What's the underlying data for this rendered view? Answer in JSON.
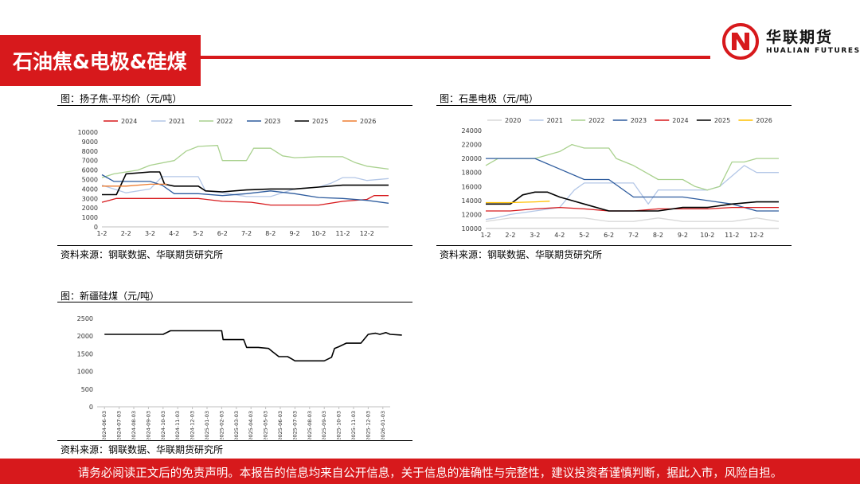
{
  "page": {
    "title": "石油焦&电极&硅煤",
    "brand_cn": "华联期货",
    "brand_en": "HUALIAN FUTURES",
    "footer": "请务必阅读正文后的免责声明。本报告的信息均来自公开信息，关于信息的准确性与完整性，建议投资者谨慎判断，据此入市，风险自担。",
    "colors": {
      "brand_red": "#d7191c"
    }
  },
  "panels": [
    {
      "title": "图：扬子焦-平均价（元/吨）",
      "source": "资料来源：钢联数据、华联期货研究所"
    },
    {
      "title": "图：石墨电极（元/吨）",
      "source": "资料来源：钢联数据、华联期货研究所"
    },
    {
      "title": "图：新疆硅煤（元/吨）",
      "source": "资料来源：钢联数据、华联期货研究所"
    }
  ],
  "chart_data": [
    {
      "type": "line",
      "legend_position": "top",
      "xlabels": [
        "1-2",
        "2-2",
        "3-2",
        "4-2",
        "5-2",
        "6-2",
        "7-2",
        "8-2",
        "9-2",
        "10-2",
        "11-2",
        "12-2"
      ],
      "xlim": [
        1,
        12.9
      ],
      "ylim": [
        0,
        10000
      ],
      "yticks": [
        0,
        1000,
        2000,
        3000,
        4000,
        5000,
        6000,
        7000,
        8000,
        9000,
        10000
      ],
      "series": [
        {
          "name": "2024",
          "color": "#d7191c",
          "points": [
            [
              1,
              2600
            ],
            [
              1.3,
              2800
            ],
            [
              1.6,
              3000
            ],
            [
              3,
              3000
            ],
            [
              5,
              3000
            ],
            [
              6,
              2700
            ],
            [
              7.2,
              2600
            ],
            [
              8,
              2300
            ],
            [
              10,
              2300
            ],
            [
              11,
              2700
            ],
            [
              12,
              2900
            ],
            [
              12.3,
              3300
            ],
            [
              12.9,
              3300
            ]
          ]
        },
        {
          "name": "2021",
          "color": "#b4c7e7",
          "points": [
            [
              1,
              4400
            ],
            [
              2,
              3600
            ],
            [
              3,
              4000
            ],
            [
              3.5,
              5300
            ],
            [
              5,
              5300
            ],
            [
              5.3,
              3800
            ],
            [
              6,
              3600
            ],
            [
              7,
              3200
            ],
            [
              8,
              3200
            ],
            [
              9,
              4000
            ],
            [
              10,
              4200
            ],
            [
              10.5,
              4600
            ],
            [
              11,
              5200
            ],
            [
              11.5,
              5200
            ],
            [
              12,
              4900
            ],
            [
              12.9,
              5100
            ]
          ]
        },
        {
          "name": "2022",
          "color": "#a9d18e",
          "points": [
            [
              1,
              5200
            ],
            [
              1.5,
              5600
            ],
            [
              2.5,
              6000
            ],
            [
              3,
              6500
            ],
            [
              4,
              7000
            ],
            [
              4.5,
              8000
            ],
            [
              5,
              8500
            ],
            [
              5.8,
              8600
            ],
            [
              6,
              7000
            ],
            [
              7,
              7000
            ],
            [
              7.3,
              8300
            ],
            [
              8,
              8300
            ],
            [
              8.5,
              7500
            ],
            [
              9,
              7300
            ],
            [
              10,
              7400
            ],
            [
              11,
              7400
            ],
            [
              11.5,
              6800
            ],
            [
              12,
              6400
            ],
            [
              12.9,
              6100
            ]
          ]
        },
        {
          "name": "2023",
          "color": "#2e5c9e",
          "points": [
            [
              1,
              5500
            ],
            [
              1.5,
              4800
            ],
            [
              2,
              4800
            ],
            [
              3,
              4800
            ],
            [
              3.5,
              4400
            ],
            [
              4,
              3500
            ],
            [
              5,
              3500
            ],
            [
              6,
              3300
            ],
            [
              7,
              3500
            ],
            [
              8,
              3800
            ],
            [
              9,
              3500
            ],
            [
              10,
              3100
            ],
            [
              11,
              3000
            ],
            [
              12,
              2800
            ],
            [
              12.9,
              2500
            ]
          ]
        },
        {
          "name": "2025",
          "color": "#000000",
          "points": [
            [
              1,
              3400
            ],
            [
              1.6,
              3400
            ],
            [
              2,
              5600
            ],
            [
              3,
              5800
            ],
            [
              3.4,
              5800
            ],
            [
              3.6,
              4500
            ],
            [
              4,
              4300
            ],
            [
              5,
              4300
            ],
            [
              5.3,
              3800
            ],
            [
              6,
              3700
            ],
            [
              7,
              3900
            ],
            [
              8,
              4000
            ],
            [
              9,
              4000
            ],
            [
              10,
              4200
            ],
            [
              11,
              4400
            ],
            [
              12,
              4400
            ],
            [
              12.9,
              4400
            ]
          ]
        },
        {
          "name": "2026",
          "color": "#ed7d31",
          "points": [
            [
              1,
              4300
            ],
            [
              2,
              4300
            ],
            [
              3,
              4500
            ],
            [
              3.7,
              4500
            ]
          ]
        }
      ]
    },
    {
      "type": "line",
      "legend_position": "top",
      "xlabels": [
        "1-2",
        "2-2",
        "3-2",
        "4-2",
        "5-2",
        "6-2",
        "7-2",
        "8-2",
        "9-2",
        "10-2",
        "11-2",
        "12-2"
      ],
      "xlim": [
        1,
        12.9
      ],
      "ylim": [
        10000,
        24000
      ],
      "yticks": [
        10000,
        12000,
        14000,
        16000,
        18000,
        20000,
        22000,
        24000
      ],
      "series": [
        {
          "name": "2020",
          "color": "#d9d9d9",
          "points": [
            [
              1,
              11000
            ],
            [
              2,
              11500
            ],
            [
              3,
              11500
            ],
            [
              4,
              11500
            ],
            [
              5,
              11500
            ],
            [
              6,
              11000
            ],
            [
              7,
              11000
            ],
            [
              8,
              11500
            ],
            [
              9,
              11000
            ],
            [
              10,
              11000
            ],
            [
              11,
              11000
            ],
            [
              12,
              11500
            ],
            [
              12.9,
              11000
            ]
          ]
        },
        {
          "name": "2021",
          "color": "#b4c7e7",
          "points": [
            [
              1,
              11300
            ],
            [
              1.4,
              11500
            ],
            [
              2,
              12000
            ],
            [
              3,
              12500
            ],
            [
              4,
              13000
            ],
            [
              4.6,
              15500
            ],
            [
              5,
              16500
            ],
            [
              6,
              16500
            ],
            [
              7,
              16500
            ],
            [
              7.6,
              13500
            ],
            [
              8,
              15500
            ],
            [
              9,
              15500
            ],
            [
              10,
              15500
            ],
            [
              10.5,
              16000
            ],
            [
              11,
              17500
            ],
            [
              11.5,
              19000
            ],
            [
              12,
              18000
            ],
            [
              12.9,
              18000
            ]
          ]
        },
        {
          "name": "2022",
          "color": "#a9d18e",
          "points": [
            [
              1,
              19000
            ],
            [
              1.5,
              20000
            ],
            [
              3,
              20000
            ],
            [
              4,
              21000
            ],
            [
              4.5,
              22000
            ],
            [
              5,
              21500
            ],
            [
              6,
              21500
            ],
            [
              6.3,
              20000
            ],
            [
              7,
              19000
            ],
            [
              7.5,
              18000
            ],
            [
              8,
              17000
            ],
            [
              9,
              17000
            ],
            [
              9.5,
              16000
            ],
            [
              10,
              15500
            ],
            [
              10.5,
              16000
            ],
            [
              11,
              19500
            ],
            [
              11.5,
              19500
            ],
            [
              12,
              20000
            ],
            [
              12.9,
              20000
            ]
          ]
        },
        {
          "name": "2023",
          "color": "#2e5c9e",
          "points": [
            [
              1,
              20000
            ],
            [
              3,
              20000
            ],
            [
              4,
              18500
            ],
            [
              5,
              17000
            ],
            [
              6,
              17000
            ],
            [
              7,
              14500
            ],
            [
              8,
              14500
            ],
            [
              9,
              14500
            ],
            [
              10,
              14000
            ],
            [
              11,
              13500
            ],
            [
              12,
              12500
            ],
            [
              12.9,
              12500
            ]
          ]
        },
        {
          "name": "2024",
          "color": "#d7191c",
          "points": [
            [
              1,
              12500
            ],
            [
              2,
              12500
            ],
            [
              3,
              12800
            ],
            [
              4,
              13000
            ],
            [
              5,
              12800
            ],
            [
              6,
              12500
            ],
            [
              7,
              12500
            ],
            [
              8,
              12800
            ],
            [
              9,
              12800
            ],
            [
              10,
              12800
            ],
            [
              11,
              13000
            ],
            [
              12,
              13000
            ],
            [
              12.9,
              13000
            ]
          ]
        },
        {
          "name": "2025",
          "color": "#000000",
          "points": [
            [
              1,
              13500
            ],
            [
              2,
              13500
            ],
            [
              2.5,
              14800
            ],
            [
              3,
              15200
            ],
            [
              3.5,
              15200
            ],
            [
              4,
              14500
            ],
            [
              5,
              13500
            ],
            [
              6,
              12500
            ],
            [
              7,
              12500
            ],
            [
              8,
              12500
            ],
            [
              9,
              13000
            ],
            [
              10,
              13000
            ],
            [
              11,
              13500
            ],
            [
              12,
              13800
            ],
            [
              12.9,
              13800
            ]
          ]
        },
        {
          "name": "2026",
          "color": "#ffc000",
          "points": [
            [
              1,
              13700
            ],
            [
              2,
              13700
            ],
            [
              3,
              13800
            ],
            [
              3.6,
              13900
            ]
          ]
        }
      ]
    },
    {
      "type": "line",
      "xlabels": [
        "2024-06-03",
        "2024-07-03",
        "2024-08-03",
        "2024-09-03",
        "2024-10-03",
        "2024-11-03",
        "2024-12-03",
        "2025-01-03",
        "2025-02-03",
        "2025-03-03",
        "2025-04-03",
        "2025-05-03",
        "2025-06-03",
        "2025-07-03",
        "2025-08-03",
        "2025-09-03",
        "2025-10-03",
        "2025-11-03",
        "2025-12-03",
        "2026-01-03"
      ],
      "ylim": [
        0,
        2500
      ],
      "yticks": [
        0,
        500,
        1000,
        1500,
        2000,
        2500
      ],
      "series": [
        {
          "color": "#000000",
          "points": [
            [
              0,
              2050
            ],
            [
              4,
              2050
            ],
            [
              4.5,
              2150
            ],
            [
              8,
              2150
            ],
            [
              8.1,
              1900
            ],
            [
              9.5,
              1900
            ],
            [
              9.7,
              1680
            ],
            [
              10.5,
              1680
            ],
            [
              11.2,
              1650
            ],
            [
              11.5,
              1550
            ],
            [
              11.9,
              1420
            ],
            [
              12.5,
              1420
            ],
            [
              12.8,
              1350
            ],
            [
              13,
              1300
            ],
            [
              15,
              1300
            ],
            [
              15.5,
              1400
            ],
            [
              15.7,
              1650
            ],
            [
              16,
              1700
            ],
            [
              16.5,
              1800
            ],
            [
              17,
              1800
            ],
            [
              17.5,
              1800
            ],
            [
              18,
              2050
            ],
            [
              18.5,
              2080
            ],
            [
              18.8,
              2050
            ],
            [
              19.2,
              2100
            ],
            [
              19.5,
              2050
            ],
            [
              20.3,
              2030
            ]
          ]
        }
      ]
    }
  ]
}
